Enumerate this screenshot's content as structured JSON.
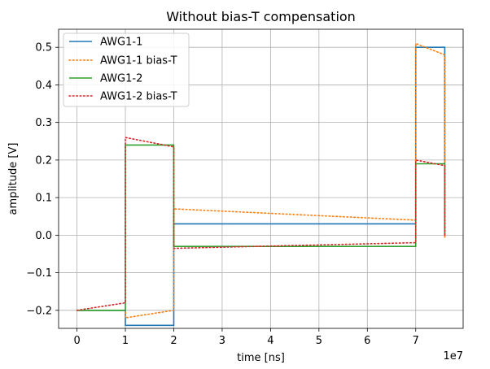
{
  "chart_data": {
    "type": "line",
    "title": "Without bias-T compensation",
    "xlabel": "time [ns]",
    "ylabel": "amplitude [V]",
    "x_offset_label": "1e7",
    "xlim": [
      -0.38,
      7.98
    ],
    "ylim": [
      -0.248,
      0.548
    ],
    "x_ticks": [
      0,
      1,
      2,
      3,
      4,
      5,
      6,
      7
    ],
    "x_tick_labels": [
      "0",
      "1",
      "2",
      "3",
      "4",
      "5",
      "6",
      "7"
    ],
    "y_ticks": [
      -0.2,
      -0.1,
      0.0,
      0.1,
      0.2,
      0.3,
      0.4,
      0.5
    ],
    "y_tick_labels": [
      "−0.2",
      "−0.1",
      "0.0",
      "0.1",
      "0.2",
      "0.3",
      "0.4",
      "0.5"
    ],
    "grid": true,
    "legend_position": "top-left",
    "series": [
      {
        "name": "AWG1-1",
        "color": "#1f77b4",
        "style": "solid",
        "x": [
          0,
          1,
          1,
          2,
          2,
          7,
          7,
          7.6,
          7.6
        ],
        "y": [
          -0.2,
          -0.2,
          -0.24,
          -0.24,
          0.03,
          0.03,
          0.5,
          0.5,
          0.0
        ]
      },
      {
        "name": "AWG1-1 bias-T",
        "color": "#ff7f0e",
        "style": "dotted",
        "x": [
          0,
          1,
          1,
          2,
          2,
          7,
          7,
          7.6,
          7.6
        ],
        "y": [
          -0.2,
          -0.2,
          -0.22,
          -0.2,
          0.07,
          0.04,
          0.51,
          0.48,
          -0.01
        ]
      },
      {
        "name": "AWG1-2",
        "color": "#2ca02c",
        "style": "solid",
        "x": [
          0,
          1,
          1,
          2,
          2,
          7,
          7,
          7.6,
          7.6
        ],
        "y": [
          -0.2,
          -0.2,
          0.24,
          0.24,
          -0.03,
          -0.03,
          0.19,
          0.19,
          0.0
        ]
      },
      {
        "name": "AWG1-2 bias-T",
        "color": "#d62728",
        "style": "dotted",
        "x": [
          0,
          1,
          1,
          2,
          2,
          7,
          7,
          7.6,
          7.6
        ],
        "y": [
          -0.2,
          -0.18,
          0.26,
          0.235,
          -0.035,
          -0.02,
          0.2,
          0.185,
          0.0
        ]
      }
    ]
  }
}
